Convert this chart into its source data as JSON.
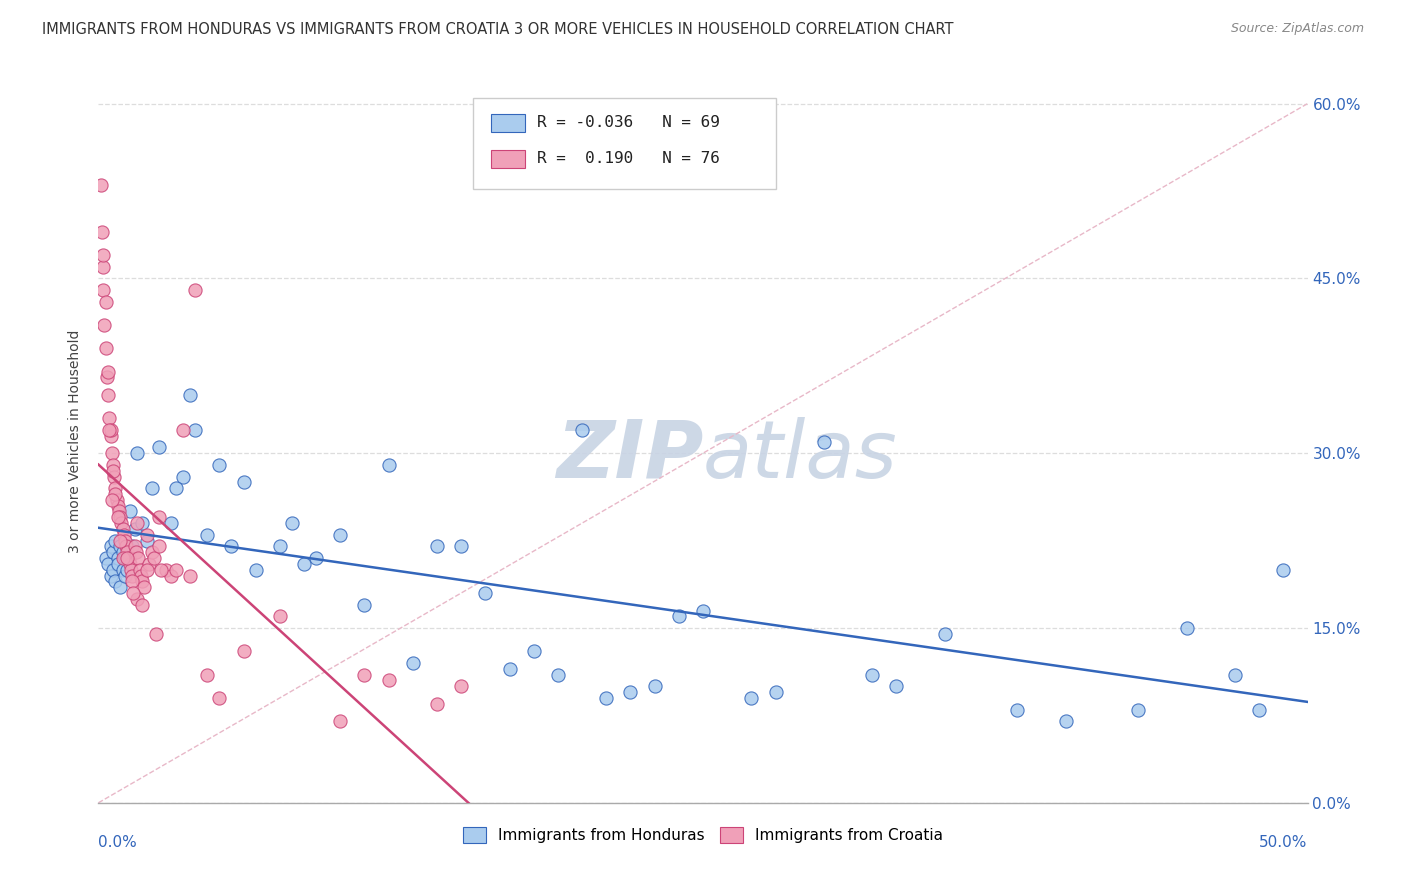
{
  "title": "IMMIGRANTS FROM HONDURAS VS IMMIGRANTS FROM CROATIA 3 OR MORE VEHICLES IN HOUSEHOLD CORRELATION CHART",
  "source": "Source: ZipAtlas.com",
  "ylabel_label": "3 or more Vehicles in Household",
  "legend_label1": "Immigrants from Honduras",
  "legend_label2": "Immigrants from Croatia",
  "R1": "-0.036",
  "N1": "69",
  "R2": "0.190",
  "N2": "76",
  "xlim": [
    0.0,
    50.0
  ],
  "ylim": [
    0.0,
    62.0
  ],
  "color_honduras": "#aaccee",
  "color_croatia": "#f0a0b8",
  "color_honduras_line": "#3366bb",
  "color_croatia_line": "#cc4477",
  "watermark_color": "#ccd8e8",
  "background_color": "#ffffff",
  "honduras_x": [
    0.3,
    0.4,
    0.5,
    0.5,
    0.6,
    0.6,
    0.7,
    0.7,
    0.8,
    0.8,
    0.9,
    0.9,
    1.0,
    1.0,
    1.1,
    1.1,
    1.2,
    1.2,
    1.3,
    1.4,
    1.5,
    1.6,
    1.8,
    2.0,
    2.2,
    2.5,
    3.0,
    3.5,
    4.0,
    4.5,
    5.5,
    6.0,
    6.5,
    7.5,
    8.0,
    9.0,
    10.0,
    11.0,
    12.0,
    14.0,
    15.0,
    17.0,
    18.0,
    19.0,
    20.0,
    21.0,
    23.0,
    24.0,
    25.0,
    27.0,
    28.0,
    30.0,
    32.0,
    33.0,
    35.0,
    38.0,
    40.0,
    43.0,
    45.0,
    47.0,
    48.0,
    49.0,
    3.2,
    3.8,
    5.0,
    8.5,
    13.0,
    16.0,
    22.0
  ],
  "honduras_y": [
    21.0,
    20.5,
    22.0,
    19.5,
    21.5,
    20.0,
    22.5,
    19.0,
    21.0,
    20.5,
    22.0,
    18.5,
    21.5,
    20.0,
    21.0,
    19.5,
    22.0,
    20.0,
    25.0,
    22.0,
    23.5,
    30.0,
    24.0,
    22.5,
    27.0,
    30.5,
    24.0,
    28.0,
    32.0,
    23.0,
    22.0,
    27.5,
    20.0,
    22.0,
    24.0,
    21.0,
    23.0,
    17.0,
    29.0,
    22.0,
    22.0,
    11.5,
    13.0,
    11.0,
    32.0,
    9.0,
    10.0,
    16.0,
    16.5,
    9.0,
    9.5,
    31.0,
    11.0,
    10.0,
    14.5,
    8.0,
    7.0,
    8.0,
    15.0,
    11.0,
    8.0,
    20.0,
    27.0,
    35.0,
    29.0,
    20.5,
    12.0,
    18.0,
    9.5
  ],
  "croatia_x": [
    0.1,
    0.15,
    0.2,
    0.2,
    0.25,
    0.3,
    0.35,
    0.4,
    0.45,
    0.5,
    0.55,
    0.6,
    0.65,
    0.7,
    0.75,
    0.8,
    0.85,
    0.9,
    0.95,
    1.0,
    1.05,
    1.1,
    1.15,
    1.2,
    1.25,
    1.3,
    1.35,
    1.4,
    1.5,
    1.55,
    1.6,
    1.65,
    1.7,
    1.75,
    1.8,
    1.9,
    2.0,
    2.1,
    2.2,
    2.3,
    2.5,
    2.8,
    3.0,
    3.2,
    3.5,
    4.0,
    0.2,
    0.3,
    0.4,
    0.5,
    0.6,
    0.7,
    0.8,
    0.9,
    1.0,
    1.2,
    1.4,
    1.6,
    1.8,
    2.0,
    2.4,
    2.6,
    3.8,
    4.5,
    5.0,
    6.0,
    7.5,
    10.0,
    11.0,
    12.0,
    14.0,
    15.0,
    2.5,
    1.45,
    0.45,
    0.55
  ],
  "croatia_y": [
    53.0,
    49.0,
    46.0,
    44.0,
    41.0,
    39.0,
    36.5,
    35.0,
    33.0,
    31.5,
    30.0,
    29.0,
    28.0,
    27.0,
    26.0,
    25.5,
    25.0,
    24.5,
    24.0,
    23.5,
    23.0,
    22.5,
    22.0,
    21.5,
    21.0,
    20.5,
    20.0,
    19.5,
    22.0,
    21.5,
    24.0,
    21.0,
    20.0,
    19.5,
    19.0,
    18.5,
    23.0,
    20.5,
    21.5,
    21.0,
    24.5,
    20.0,
    19.5,
    20.0,
    32.0,
    44.0,
    47.0,
    43.0,
    37.0,
    32.0,
    28.5,
    26.5,
    24.5,
    22.5,
    21.0,
    21.0,
    19.0,
    17.5,
    17.0,
    20.0,
    14.5,
    20.0,
    19.5,
    11.0,
    9.0,
    13.0,
    16.0,
    7.0,
    11.0,
    10.5,
    8.5,
    10.0,
    22.0,
    18.0,
    32.0,
    26.0
  ],
  "y_tick_vals": [
    0,
    15,
    30,
    45,
    60
  ],
  "grid_color": "#dddddd",
  "ref_line_color": "#cccccc"
}
